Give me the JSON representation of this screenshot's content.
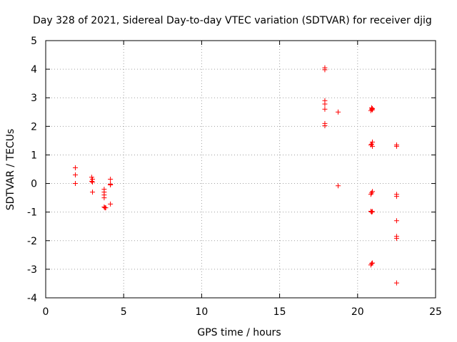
{
  "chart_data": {
    "type": "scatter",
    "title": "Day 328 of 2021, Sidereal Day-to-day VTEC variation (SDTVAR) for receiver djig",
    "xlabel": "GPS time / hours",
    "ylabel": "SDTVAR / TECUs",
    "xlim": [
      0,
      25
    ],
    "ylim": [
      -4,
      5
    ],
    "xticks": [
      0,
      5,
      10,
      15,
      20,
      25
    ],
    "yticks": [
      -4,
      -3,
      -2,
      -1,
      0,
      1,
      2,
      3,
      4,
      5
    ],
    "grid": true,
    "marker": "+",
    "marker_color": "#ff0000",
    "points": [
      {
        "x": 1.9,
        "y": 0.55
      },
      {
        "x": 1.9,
        "y": 0.3
      },
      {
        "x": 1.9,
        "y": 0.0
      },
      {
        "x": 2.95,
        "y": 0.22
      },
      {
        "x": 3.0,
        "y": 0.15
      },
      {
        "x": 2.95,
        "y": 0.08
      },
      {
        "x": 3.0,
        "y": 0.05
      },
      {
        "x": 3.0,
        "y": -0.3
      },
      {
        "x": 3.75,
        "y": -0.2
      },
      {
        "x": 3.75,
        "y": -0.3
      },
      {
        "x": 3.75,
        "y": -0.4
      },
      {
        "x": 3.75,
        "y": -0.5
      },
      {
        "x": 3.75,
        "y": -0.82
      },
      {
        "x": 3.8,
        "y": -0.85
      },
      {
        "x": 3.85,
        "y": -0.85
      },
      {
        "x": 4.15,
        "y": 0.15
      },
      {
        "x": 4.15,
        "y": -0.02
      },
      {
        "x": 4.15,
        "y": -0.05
      },
      {
        "x": 4.15,
        "y": -0.72
      },
      {
        "x": 17.9,
        "y": 4.05
      },
      {
        "x": 17.9,
        "y": 3.98
      },
      {
        "x": 17.9,
        "y": 2.9
      },
      {
        "x": 17.9,
        "y": 2.78
      },
      {
        "x": 17.9,
        "y": 2.6
      },
      {
        "x": 17.9,
        "y": 2.1
      },
      {
        "x": 17.9,
        "y": 2.02
      },
      {
        "x": 18.75,
        "y": 2.5
      },
      {
        "x": 18.75,
        "y": -0.08
      },
      {
        "x": 20.85,
        "y": 2.55
      },
      {
        "x": 20.9,
        "y": 2.6
      },
      {
        "x": 20.95,
        "y": 2.62
      },
      {
        "x": 20.9,
        "y": 2.65
      },
      {
        "x": 20.95,
        "y": 2.58
      },
      {
        "x": 20.95,
        "y": 1.45
      },
      {
        "x": 20.9,
        "y": 1.38
      },
      {
        "x": 20.85,
        "y": 1.35
      },
      {
        "x": 20.95,
        "y": 1.3
      },
      {
        "x": 20.95,
        "y": -0.28
      },
      {
        "x": 20.9,
        "y": -0.33
      },
      {
        "x": 20.85,
        "y": -0.38
      },
      {
        "x": 20.85,
        "y": -0.97
      },
      {
        "x": 20.9,
        "y": -1.0
      },
      {
        "x": 20.95,
        "y": -0.98
      },
      {
        "x": 20.85,
        "y": -2.85
      },
      {
        "x": 20.9,
        "y": -2.8
      },
      {
        "x": 20.95,
        "y": -2.78
      },
      {
        "x": 22.5,
        "y": 1.35
      },
      {
        "x": 22.5,
        "y": 1.3
      },
      {
        "x": 22.5,
        "y": -0.38
      },
      {
        "x": 22.5,
        "y": -0.45
      },
      {
        "x": 22.5,
        "y": -1.3
      },
      {
        "x": 22.5,
        "y": -1.85
      },
      {
        "x": 22.5,
        "y": -1.92
      },
      {
        "x": 22.5,
        "y": -3.48
      }
    ]
  }
}
